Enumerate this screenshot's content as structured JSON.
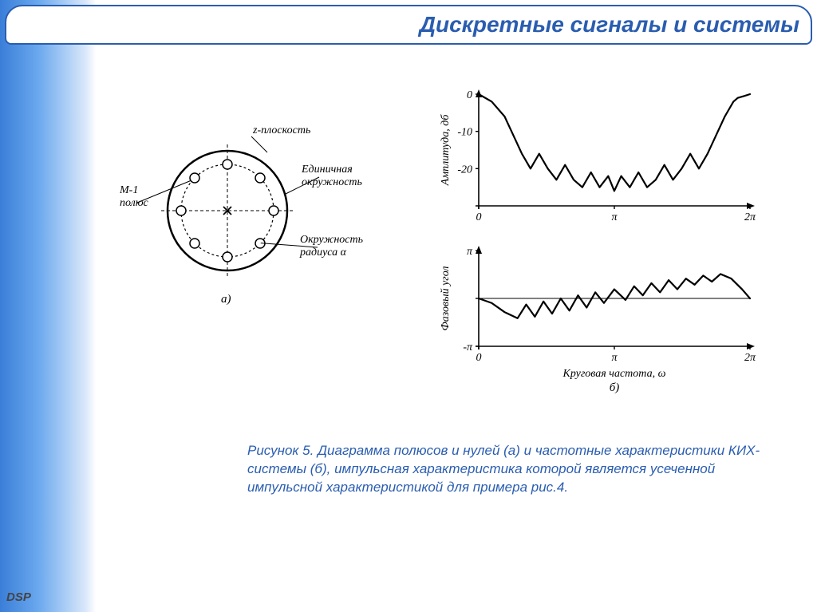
{
  "header": {
    "title": "Дискретные сигналы и системы"
  },
  "footer": {
    "dsp": "DSP"
  },
  "caption": {
    "text": "Рисунок 5. Диаграмма полюсов и нулей (а) и частотные характеристики КИХ-системы (б), импульсная характеристика которой является усеченной импульсной характеристикой для примера рис.4."
  },
  "colors": {
    "stroke": "#000000",
    "bg": "#ffffff",
    "accent": "#2a5db0",
    "gradient_start": "#3a7ed8",
    "gradient_end": "#ffffff"
  },
  "polezero": {
    "type": "pole-zero-diagram",
    "labels": {
      "plane": "z-плоскость",
      "unit_circle": "Единичная окружность",
      "radius_circle": "Окружность радиуса α",
      "pole_label": "M-1 полюс",
      "sublabel": "а)"
    },
    "outer_radius": 75,
    "inner_radius": 58,
    "zero_marker_radius": 6,
    "line_width": 1.5,
    "n_zeros": 8,
    "zeros_angles_deg": [
      0,
      45,
      90,
      135,
      180,
      225,
      270,
      315
    ],
    "pole_at_origin": true
  },
  "amplitude": {
    "type": "line",
    "title": "",
    "ylabel": "Амплитуда, дб",
    "xlabel": "",
    "xlim": [
      0,
      6.283
    ],
    "ylim": [
      -30,
      0
    ],
    "xticks": [
      0,
      3.1416,
      6.283
    ],
    "xticklabels": [
      "0",
      "π",
      "2π"
    ],
    "yticks": [
      -20,
      -10,
      0
    ],
    "yticklabels": [
      "-20",
      "-10",
      "0"
    ],
    "line_width": 2.2,
    "line_color": "#000000",
    "x": [
      0,
      0.3,
      0.6,
      0.8,
      1.0,
      1.2,
      1.4,
      1.6,
      1.8,
      2.0,
      2.2,
      2.4,
      2.6,
      2.8,
      3.0,
      3.14,
      3.3,
      3.5,
      3.7,
      3.9,
      4.1,
      4.3,
      4.5,
      4.7,
      4.9,
      5.1,
      5.3,
      5.5,
      5.7,
      5.9,
      6.0,
      6.15,
      6.283
    ],
    "y": [
      0,
      -2,
      -6,
      -11,
      -16,
      -20,
      -16,
      -20,
      -23,
      -19,
      -23,
      -25,
      -21,
      -25,
      -22,
      -26,
      -22,
      -25,
      -21,
      -25,
      -23,
      -19,
      -23,
      -20,
      -16,
      -20,
      -16,
      -11,
      -6,
      -2,
      -1,
      -0.5,
      0
    ]
  },
  "phase": {
    "type": "line",
    "ylabel": "Фазовый угол",
    "xlabel": "Круговая частота, ω",
    "sublabel": "б)",
    "xlim": [
      0,
      6.283
    ],
    "ylim": [
      -3.1416,
      3.1416
    ],
    "xticks": [
      0,
      3.1416,
      6.283
    ],
    "xticklabels": [
      "0",
      "π",
      "2π"
    ],
    "yticks": [
      -3.1416,
      0,
      3.1416
    ],
    "yticklabels": [
      "-π",
      "",
      "π"
    ],
    "line_width": 2.2,
    "line_color": "#000000",
    "x": [
      0,
      0.3,
      0.6,
      0.9,
      1.1,
      1.3,
      1.5,
      1.7,
      1.9,
      2.1,
      2.3,
      2.5,
      2.7,
      2.9,
      3.14,
      3.4,
      3.6,
      3.8,
      4.0,
      4.2,
      4.4,
      4.6,
      4.8,
      5.0,
      5.2,
      5.4,
      5.6,
      5.85,
      6.1,
      6.283
    ],
    "y": [
      0,
      -0.3,
      -0.9,
      -1.3,
      -0.4,
      -1.2,
      -0.2,
      -1.0,
      0,
      -0.8,
      0.2,
      -0.6,
      0.4,
      -0.3,
      0.6,
      -0.1,
      0.8,
      0.2,
      1.0,
      0.4,
      1.2,
      0.6,
      1.3,
      0.9,
      1.5,
      1.1,
      1.6,
      1.3,
      0.6,
      0
    ]
  }
}
